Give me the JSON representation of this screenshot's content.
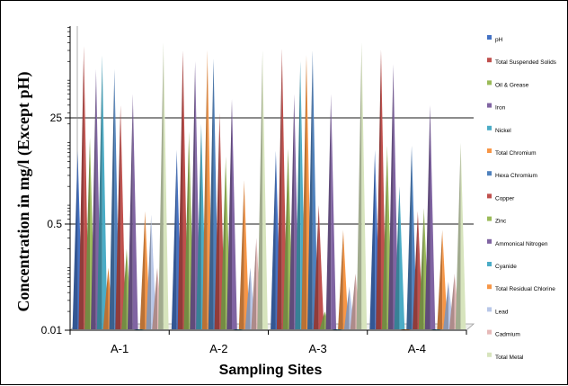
{
  "chart_data": {
    "type": "bar",
    "style": "3d-cone",
    "categories": [
      "A-1",
      "A-2",
      "A-3",
      "A-4"
    ],
    "xlabel": "Sampling Sites",
    "ylabel": "Concentration in mg/l (Except pH)",
    "y_ticks": [
      "0.01",
      "0.5",
      "25"
    ],
    "y_tick_values": [
      0.01,
      0.5,
      25
    ],
    "yscale": "log",
    "ylim": [
      0.01,
      1000
    ],
    "grid": "major horizontal lines at 0.5 and 25",
    "legend_position": "right",
    "series": [
      {
        "name": "pH",
        "color": "#4472C4",
        "values": [
          7.5,
          7.6,
          7.4,
          7.6
        ]
      },
      {
        "name": "Total Suspended Solids",
        "color": "#C0504D",
        "values": [
          350,
          300,
          320,
          310
        ]
      },
      {
        "name": "Oil & Grease",
        "color": "#9BBB59",
        "values": [
          12,
          15,
          8,
          9
        ]
      },
      {
        "name": "Iron",
        "color": "#8064A2",
        "values": [
          150,
          200,
          60,
          180
        ]
      },
      {
        "name": "Nickel",
        "color": "#4BACC6",
        "values": [
          250,
          20,
          200,
          2
        ]
      },
      {
        "name": "Total Chromium",
        "color": "#F79646",
        "values": [
          0.1,
          300,
          250,
          0.01
        ]
      },
      {
        "name": "Hexa Chromium",
        "color": "#4F81BD",
        "values": [
          150,
          220,
          300,
          9
        ]
      },
      {
        "name": "Copper",
        "color": "#C0504D",
        "values": [
          40,
          30,
          1,
          0.8
        ]
      },
      {
        "name": "Zinc",
        "color": "#9BBB59",
        "values": [
          0.2,
          6,
          0.02,
          0.9
        ]
      },
      {
        "name": "Ammonical Nitrogen",
        "color": "#8064A2",
        "values": [
          60,
          50,
          60,
          40
        ]
      },
      {
        "name": "Cyanide",
        "color": "#4BACC6",
        "values": [
          0.01,
          0.01,
          0.01,
          0.01
        ]
      },
      {
        "name": "Total Residual Chlorine",
        "color": "#F79646",
        "values": [
          0.8,
          2.5,
          0.4,
          0.4
        ]
      },
      {
        "name": "Lead",
        "color": "#B8C7E8",
        "values": [
          0.7,
          0.1,
          0.05,
          0.06
        ]
      },
      {
        "name": "Cadmium",
        "color": "#E6B9B8",
        "values": [
          0.1,
          0.3,
          0.08,
          0.08
        ]
      },
      {
        "name": "Total Metal",
        "color": "#D7E4BD",
        "values": [
          400,
          300,
          400,
          10
        ]
      }
    ]
  }
}
